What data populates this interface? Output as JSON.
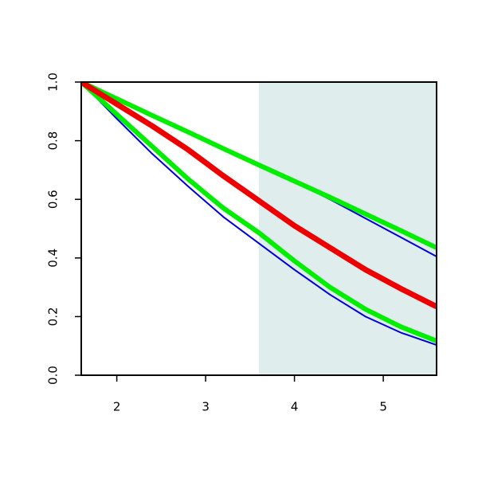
{
  "chart_data": {
    "type": "line",
    "x": [
      1.6,
      2.0,
      2.4,
      2.8,
      3.2,
      3.6,
      4.0,
      4.4,
      4.8,
      5.2,
      5.6
    ],
    "series": [
      {
        "color": "#0000dd",
        "width": 2,
        "values": [
          1.0,
          0.943,
          0.886,
          0.83,
          0.773,
          0.717,
          0.66,
          0.6,
          0.535,
          0.47,
          0.405
        ]
      },
      {
        "color": "#0000dd",
        "width": 2,
        "values": [
          1.0,
          0.875,
          0.755,
          0.645,
          0.54,
          0.45,
          0.36,
          0.275,
          0.2,
          0.145,
          0.103
        ]
      },
      {
        "color": "#00ee00",
        "width": 6,
        "values": [
          1.0,
          0.943,
          0.886,
          0.83,
          0.773,
          0.717,
          0.662,
          0.607,
          0.55,
          0.493,
          0.435
        ]
      },
      {
        "color": "#00ee00",
        "width": 6,
        "values": [
          1.0,
          0.89,
          0.78,
          0.67,
          0.57,
          0.486,
          0.39,
          0.3,
          0.225,
          0.165,
          0.117
        ]
      },
      {
        "color": "#ee0000",
        "width": 7,
        "values": [
          1.0,
          0.925,
          0.85,
          0.77,
          0.68,
          0.595,
          0.51,
          0.435,
          0.36,
          0.295,
          0.234
        ]
      }
    ],
    "shade": {
      "xlim": [
        3.6,
        5.6
      ],
      "color": "#e0eded"
    },
    "xlim": [
      1.6,
      5.6
    ],
    "ylim": [
      0,
      1
    ],
    "xticks": [
      2,
      3,
      4,
      5
    ],
    "yticks": [
      {
        "value": 0,
        "label": "0.0"
      },
      0.2,
      0.4,
      0.6,
      0.8,
      {
        "value": 1,
        "label": "1.0"
      }
    ]
  }
}
